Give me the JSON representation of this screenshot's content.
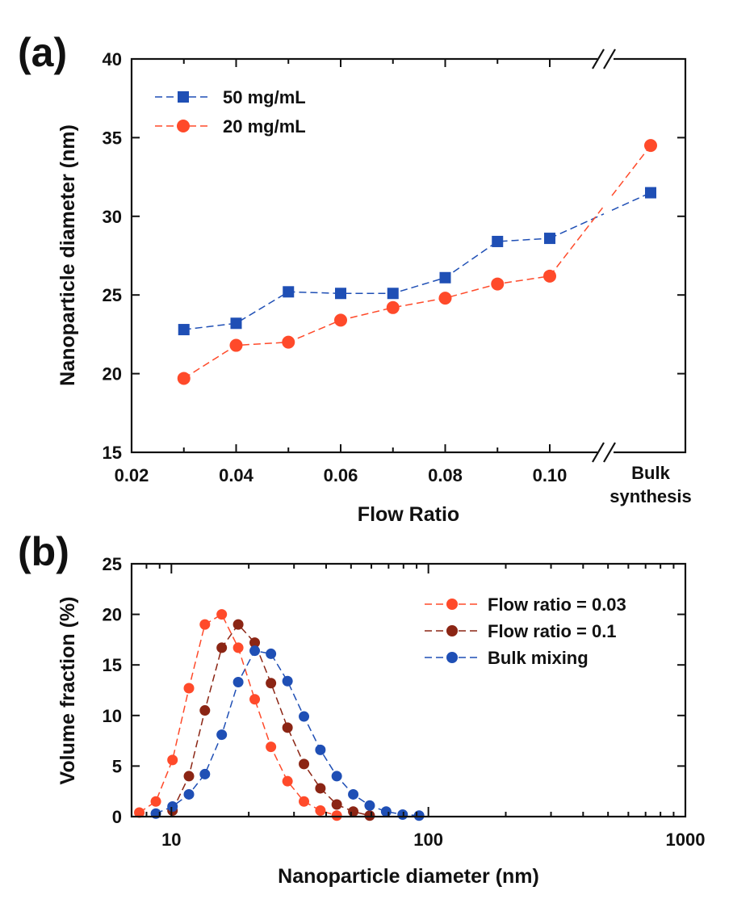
{
  "chart_data": [
    {
      "panel_label": "(a)",
      "type": "line",
      "xlabel": "Flow Ratio",
      "ylabel": "Nanoparticle diameter (nm)",
      "xlim": [
        0.02,
        0.11
      ],
      "ylim": [
        15,
        40
      ],
      "x_ticks": [
        {
          "v": 0.02,
          "label": "0.02"
        },
        {
          "v": 0.04,
          "label": "0.04"
        },
        {
          "v": 0.06,
          "label": "0.06"
        },
        {
          "v": 0.08,
          "label": "0.08"
        },
        {
          "v": 0.1,
          "label": "0.10"
        }
      ],
      "y_ticks": [
        15,
        20,
        25,
        30,
        35,
        40
      ],
      "broken_axis_category": [
        "Bulk",
        "synthesis"
      ],
      "legend_position": "top-left",
      "x": [
        0.03,
        0.04,
        0.05,
        0.06,
        0.07,
        0.08,
        0.09,
        0.1
      ],
      "series": [
        {
          "name": "50 mg/mL",
          "marker": "square",
          "color": "#1f4fb5",
          "values": [
            22.8,
            23.2,
            25.2,
            25.1,
            25.1,
            26.1,
            28.4,
            28.6
          ],
          "bulk_value": 31.5
        },
        {
          "name": "20 mg/mL",
          "marker": "circle",
          "color": "#ff4a2a",
          "values": [
            19.7,
            21.8,
            22.0,
            23.4,
            24.2,
            24.8,
            25.7,
            26.2
          ],
          "bulk_value": 34.5
        }
      ]
    },
    {
      "panel_label": "(b)",
      "type": "line",
      "xlabel": "Nanoparticle diameter (nm)",
      "ylabel": "Volume fraction (%)",
      "xscale": "log",
      "xlim": [
        7,
        1000
      ],
      "ylim": [
        0,
        25
      ],
      "x_ticks": [
        {
          "v": 10,
          "label": "10"
        },
        {
          "v": 100,
          "label": "100"
        },
        {
          "v": 1000,
          "label": "1000"
        }
      ],
      "y_ticks": [
        0,
        5,
        10,
        15,
        20,
        25
      ],
      "legend_position": "top-right",
      "series": [
        {
          "name": "Flow ratio = 0.03",
          "color": "#ff4a2a",
          "x": [
            7.5,
            8.7,
            10.1,
            11.7,
            13.5,
            15.7,
            18.2,
            21.1,
            24.4,
            28.3,
            32.8,
            38.0,
            44.0
          ],
          "values": [
            0.4,
            1.5,
            5.6,
            12.7,
            19.0,
            20.0,
            16.7,
            11.6,
            6.9,
            3.5,
            1.5,
            0.6,
            0.1
          ]
        },
        {
          "name": "Flow ratio = 0.1",
          "color": "#8b2514",
          "x": [
            10.1,
            11.7,
            13.5,
            15.7,
            18.2,
            21.1,
            24.4,
            28.3,
            32.8,
            38.0,
            44.0,
            51.0,
            59.1
          ],
          "values": [
            0.6,
            4.0,
            10.5,
            16.7,
            19.0,
            17.2,
            13.2,
            8.8,
            5.2,
            2.8,
            1.2,
            0.5,
            0.1
          ]
        },
        {
          "name": "Bulk mixing",
          "color": "#1f4fb5",
          "x": [
            8.7,
            10.1,
            11.7,
            13.5,
            15.7,
            18.2,
            21.1,
            24.4,
            28.3,
            32.8,
            38.0,
            44.0,
            51.0,
            59.1,
            68.5,
            79.4,
            92.0
          ],
          "values": [
            0.3,
            1.0,
            2.2,
            4.2,
            8.1,
            13.3,
            16.4,
            16.1,
            13.4,
            9.9,
            6.6,
            4.0,
            2.2,
            1.1,
            0.5,
            0.2,
            0.1
          ]
        }
      ]
    }
  ]
}
